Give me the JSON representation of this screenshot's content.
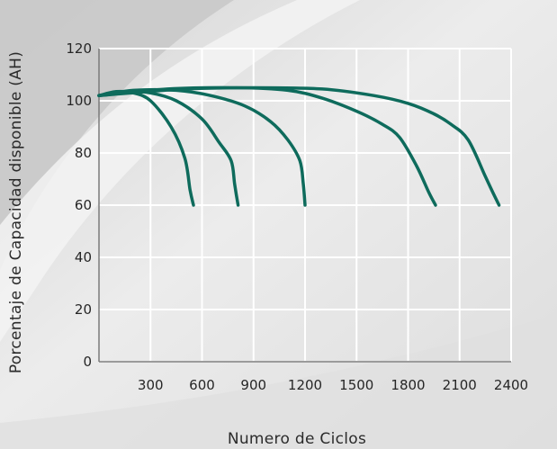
{
  "chart_data": {
    "type": "line",
    "title": "",
    "xlabel": "Numero de Ciclos",
    "ylabel": "Porcentaje de Capacidad disponible (AH)",
    "xlim": [
      0,
      2400
    ],
    "ylim": [
      0,
      120
    ],
    "x_ticks": [
      300,
      600,
      900,
      1200,
      1500,
      1800,
      2100,
      2400
    ],
    "x_tick_labels": [
      "300",
      "600",
      "900",
      "1200",
      "1500",
      "1800",
      "2100",
      "2400"
    ],
    "y_ticks": [
      0,
      20,
      40,
      60,
      80,
      100,
      120
    ],
    "y_tick_labels": [
      "0",
      "20",
      "40",
      "60",
      "80",
      "100",
      "120"
    ],
    "grid": true,
    "legend": "none",
    "line_color": "#0e6b5c",
    "series": [
      {
        "points": [
          [
            0,
            102
          ],
          [
            100,
            103.5
          ],
          [
            200,
            103
          ],
          [
            300,
            100
          ],
          [
            420,
            90
          ],
          [
            500,
            78
          ],
          [
            530,
            66
          ],
          [
            550,
            60
          ]
        ]
      },
      {
        "points": [
          [
            0,
            102
          ],
          [
            150,
            103.5
          ],
          [
            300,
            103
          ],
          [
            450,
            100
          ],
          [
            600,
            93
          ],
          [
            700,
            84
          ],
          [
            770,
            77
          ],
          [
            790,
            68
          ],
          [
            810,
            60
          ]
        ]
      },
      {
        "points": [
          [
            0,
            102
          ],
          [
            200,
            104
          ],
          [
            450,
            104
          ],
          [
            650,
            102
          ],
          [
            850,
            98
          ],
          [
            1000,
            92
          ],
          [
            1100,
            85
          ],
          [
            1170,
            77
          ],
          [
            1190,
            68
          ],
          [
            1200,
            60
          ]
        ]
      },
      {
        "points": [
          [
            0,
            102
          ],
          [
            400,
            104.5
          ],
          [
            800,
            105
          ],
          [
            1100,
            104
          ],
          [
            1300,
            101
          ],
          [
            1500,
            96
          ],
          [
            1650,
            91
          ],
          [
            1750,
            86
          ],
          [
            1850,
            75
          ],
          [
            1920,
            65
          ],
          [
            1960,
            60
          ]
        ]
      },
      {
        "points": [
          [
            0,
            102
          ],
          [
            500,
            104.5
          ],
          [
            900,
            105
          ],
          [
            1300,
            104.5
          ],
          [
            1600,
            102
          ],
          [
            1800,
            99
          ],
          [
            1950,
            95
          ],
          [
            2050,
            91
          ],
          [
            2150,
            85
          ],
          [
            2250,
            71
          ],
          [
            2300,
            64
          ],
          [
            2330,
            60
          ]
        ]
      }
    ]
  }
}
